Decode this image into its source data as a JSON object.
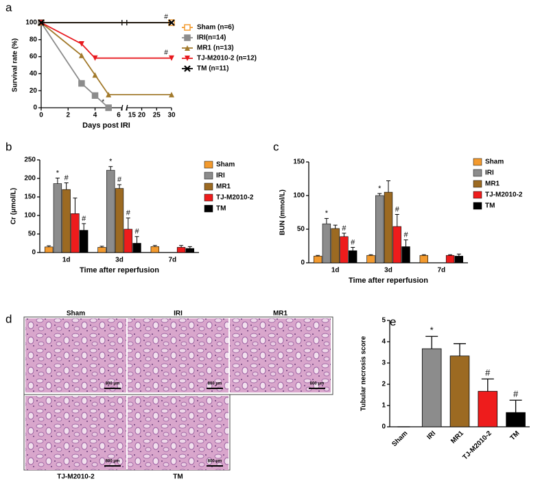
{
  "chart_data": [
    {
      "type": "line",
      "panel": "a",
      "xlabel": "Days post IRI",
      "ylabel": "Survival rate (%)",
      "xlim": [
        0,
        30
      ],
      "xbreak": [
        6,
        15
      ],
      "xticks": [
        0,
        2,
        4,
        6,
        15,
        20,
        25,
        30
      ],
      "ylim": [
        0,
        100
      ],
      "yticks": [
        0,
        20,
        40,
        60,
        80,
        100
      ],
      "legend": "right",
      "series": [
        {
          "name": "Sham (n=6)",
          "color": "#f39a2e",
          "marker": "square-open",
          "x": [
            0,
            30
          ],
          "values": [
            100,
            100
          ],
          "point_labels": [
            null,
            "#"
          ]
        },
        {
          "name": "IRI(n=14)",
          "color": "#8c8c8c",
          "marker": "square",
          "x": [
            0,
            3,
            4,
            5
          ],
          "values": [
            100,
            28.6,
            14.3,
            0
          ],
          "point_labels": [
            null,
            null,
            null,
            "*"
          ]
        },
        {
          "name": "MR1 (n=13)",
          "color": "#a27a2c",
          "marker": "triangle",
          "x": [
            0,
            3,
            4,
            5,
            30
          ],
          "values": [
            100,
            61.5,
            38.5,
            15.4,
            15.4
          ],
          "point_labels": [
            null,
            null,
            null,
            null,
            null
          ]
        },
        {
          "name": "TJ-M2010-2 (n=12)",
          "color": "#e8191e",
          "marker": "triangle-down",
          "x": [
            0,
            3,
            4,
            30
          ],
          "values": [
            100,
            75,
            58.3,
            58.3
          ],
          "point_labels": [
            null,
            null,
            null,
            "#"
          ]
        },
        {
          "name": "TM (n=11)",
          "color": "#000000",
          "marker": "x",
          "x": [
            0,
            30
          ],
          "values": [
            100,
            100
          ],
          "point_labels": [
            null,
            null
          ]
        }
      ]
    },
    {
      "type": "groupbar",
      "panel": "b",
      "xlabel": "Time after reperfusion",
      "ylabel": "Cr (μmol/L)",
      "categories": [
        "1d",
        "3d",
        "7d"
      ],
      "ylim": [
        0,
        250
      ],
      "yticks": [
        0,
        50,
        100,
        150,
        200,
        250
      ],
      "legend": "right",
      "series": [
        {
          "name": "Sham",
          "color": "#f39a2e",
          "values": [
            15,
            14,
            16
          ],
          "errors": [
            3,
            3,
            3
          ],
          "significance": [
            null,
            null,
            null
          ]
        },
        {
          "name": "IRI",
          "color": "#8c8c8c",
          "values": [
            186,
            222,
            null
          ],
          "errors": [
            15,
            10,
            null
          ],
          "significance": [
            "*",
            "*",
            null
          ]
        },
        {
          "name": "MR1",
          "color": "#9c6a22",
          "values": [
            170,
            173,
            null
          ],
          "errors": [
            18,
            10,
            null
          ],
          "significance": [
            "#",
            "#",
            null
          ]
        },
        {
          "name": "TJ-M2010-2",
          "color": "#ee1c1c",
          "values": [
            105,
            63,
            14
          ],
          "errors": [
            42,
            30,
            5
          ],
          "significance": [
            null,
            "#",
            null
          ]
        },
        {
          "name": "TM",
          "color": "#000000",
          "values": [
            60,
            25,
            11
          ],
          "errors": [
            18,
            18,
            5
          ],
          "significance": [
            "#",
            "#",
            null
          ]
        }
      ]
    },
    {
      "type": "groupbar",
      "panel": "c",
      "xlabel": "Time after reperfusion",
      "ylabel": "BUN (mmol/L)",
      "categories": [
        "1d",
        "3d",
        "7d"
      ],
      "ylim": [
        0,
        150
      ],
      "yticks": [
        0,
        50,
        100,
        150
      ],
      "legend": "right",
      "series": [
        {
          "name": "Sham",
          "color": "#f39a2e",
          "values": [
            10,
            11,
            11
          ],
          "errors": [
            1,
            1,
            1
          ],
          "significance": [
            null,
            null,
            null
          ]
        },
        {
          "name": "IRI",
          "color": "#8c8c8c",
          "values": [
            58,
            100,
            null
          ],
          "errors": [
            8,
            3,
            null
          ],
          "significance": [
            "*",
            "*",
            null
          ]
        },
        {
          "name": "MR1",
          "color": "#9c6a22",
          "values": [
            51,
            105,
            null
          ],
          "errors": [
            5,
            17,
            null
          ],
          "significance": [
            null,
            null,
            null
          ]
        },
        {
          "name": "TJ-M2010-2",
          "color": "#ee1c1c",
          "values": [
            39,
            54,
            11
          ],
          "errors": [
            5,
            18,
            1
          ],
          "significance": [
            "#",
            "#",
            null
          ]
        },
        {
          "name": "TM",
          "color": "#000000",
          "values": [
            18,
            24,
            10
          ],
          "errors": [
            5,
            10,
            3
          ],
          "significance": [
            "#",
            "#",
            null
          ]
        }
      ]
    },
    {
      "type": "bar",
      "panel": "e",
      "ylabel": "Tubular necrosis score",
      "categories": [
        "Sham",
        "IRI",
        "MR1",
        "TJ-M2010-2",
        "TM"
      ],
      "values": [
        0,
        3.67,
        3.33,
        1.67,
        0.67
      ],
      "errors": [
        0,
        0.58,
        0.58,
        0.58,
        0.58
      ],
      "colors": [
        "#f39a2e",
        "#8c8c8c",
        "#9c6a22",
        "#ee1c1c",
        "#000000"
      ],
      "significance": [
        null,
        "*",
        null,
        "#",
        "#"
      ],
      "ylim": [
        0,
        5
      ],
      "yticks": [
        0,
        1,
        2,
        3,
        4,
        5
      ]
    }
  ],
  "histology": {
    "panel": "d",
    "images": [
      {
        "label": "Sham",
        "scale_bar": "800 μm"
      },
      {
        "label": "IRI",
        "scale_bar": "800 μm"
      },
      {
        "label": "MR1",
        "scale_bar": "800 μm"
      },
      {
        "label": "TJ-M2010-2",
        "scale_bar": "800 μm"
      },
      {
        "label": "TM",
        "scale_bar": "800 μm"
      }
    ]
  }
}
